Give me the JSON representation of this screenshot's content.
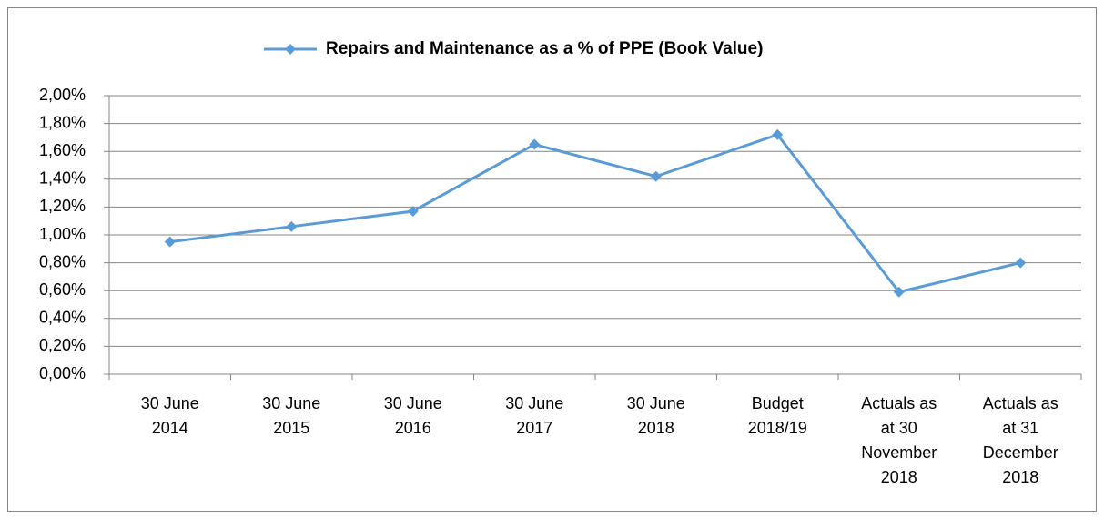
{
  "chart_data": {
    "type": "line",
    "categories": [
      "30 June\n2014",
      "30 June\n2015",
      "30 June\n2016",
      "30 June\n2017",
      "30 June\n2018",
      "Budget\n2018/19",
      "Actuals as\nat 30\nNovember\n2018",
      "Actuals as\nat 31\nDecember\n2018"
    ],
    "series": [
      {
        "name": "Repairs and Maintenance as a % of PPE (Book Value)",
        "color": "#5b9bd5",
        "values": [
          0.95,
          1.06,
          1.17,
          1.65,
          1.42,
          1.72,
          0.59,
          0.8
        ]
      }
    ],
    "ylim": [
      0,
      2
    ],
    "yticks": [
      {
        "value": 0,
        "label": "0,00%"
      },
      {
        "value": 0.2,
        "label": "0,20%"
      },
      {
        "value": 0.4,
        "label": "0,40%"
      },
      {
        "value": 0.6,
        "label": "0,60%"
      },
      {
        "value": 0.8,
        "label": "0,80%"
      },
      {
        "value": 1.0,
        "label": "1,00%"
      },
      {
        "value": 1.2,
        "label": "1,20%"
      },
      {
        "value": 1.4,
        "label": "1,40%"
      },
      {
        "value": 1.6,
        "label": "1,60%"
      },
      {
        "value": 1.8,
        "label": "1,80%"
      },
      {
        "value": 2.0,
        "label": "2,00%"
      }
    ],
    "grid": true,
    "legend": "top"
  }
}
